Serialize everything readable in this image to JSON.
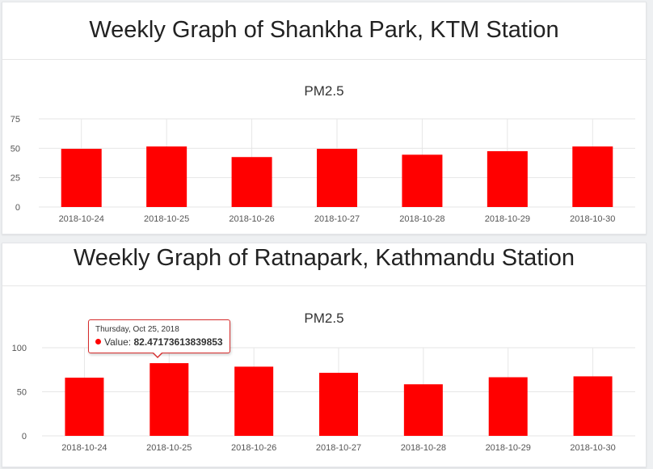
{
  "panels": [
    {
      "title": "Weekly Graph of Shankha Park, KTM Station"
    },
    {
      "title": "Weekly Graph of Ratnapark, Kathmandu Station",
      "tooltip": {
        "date": "Thursday, Oct 25, 2018",
        "label": "Value:",
        "value": "82.47173613839853"
      }
    }
  ],
  "chart_data": [
    {
      "type": "bar",
      "title": "PM2.5",
      "categories": [
        "2018-10-24",
        "2018-10-25",
        "2018-10-26",
        "2018-10-27",
        "2018-10-28",
        "2018-10-29",
        "2018-10-30"
      ],
      "values": [
        49.5,
        51.5,
        42.5,
        49.5,
        44.5,
        47.5,
        51.5
      ],
      "yticks": [
        0,
        25,
        50,
        75
      ],
      "ylim": [
        0,
        75
      ],
      "bar_color": "#ff0000",
      "grid": true
    },
    {
      "type": "bar",
      "title": "PM2.5",
      "categories": [
        "2018-10-24",
        "2018-10-25",
        "2018-10-26",
        "2018-10-27",
        "2018-10-28",
        "2018-10-29",
        "2018-10-30"
      ],
      "values": [
        66,
        82.47173613839853,
        78.5,
        71.5,
        58.5,
        66.5,
        67.5
      ],
      "yticks": [
        0,
        50,
        100
      ],
      "ylim": [
        0,
        100
      ],
      "bar_color": "#ff0000",
      "grid": true
    }
  ]
}
